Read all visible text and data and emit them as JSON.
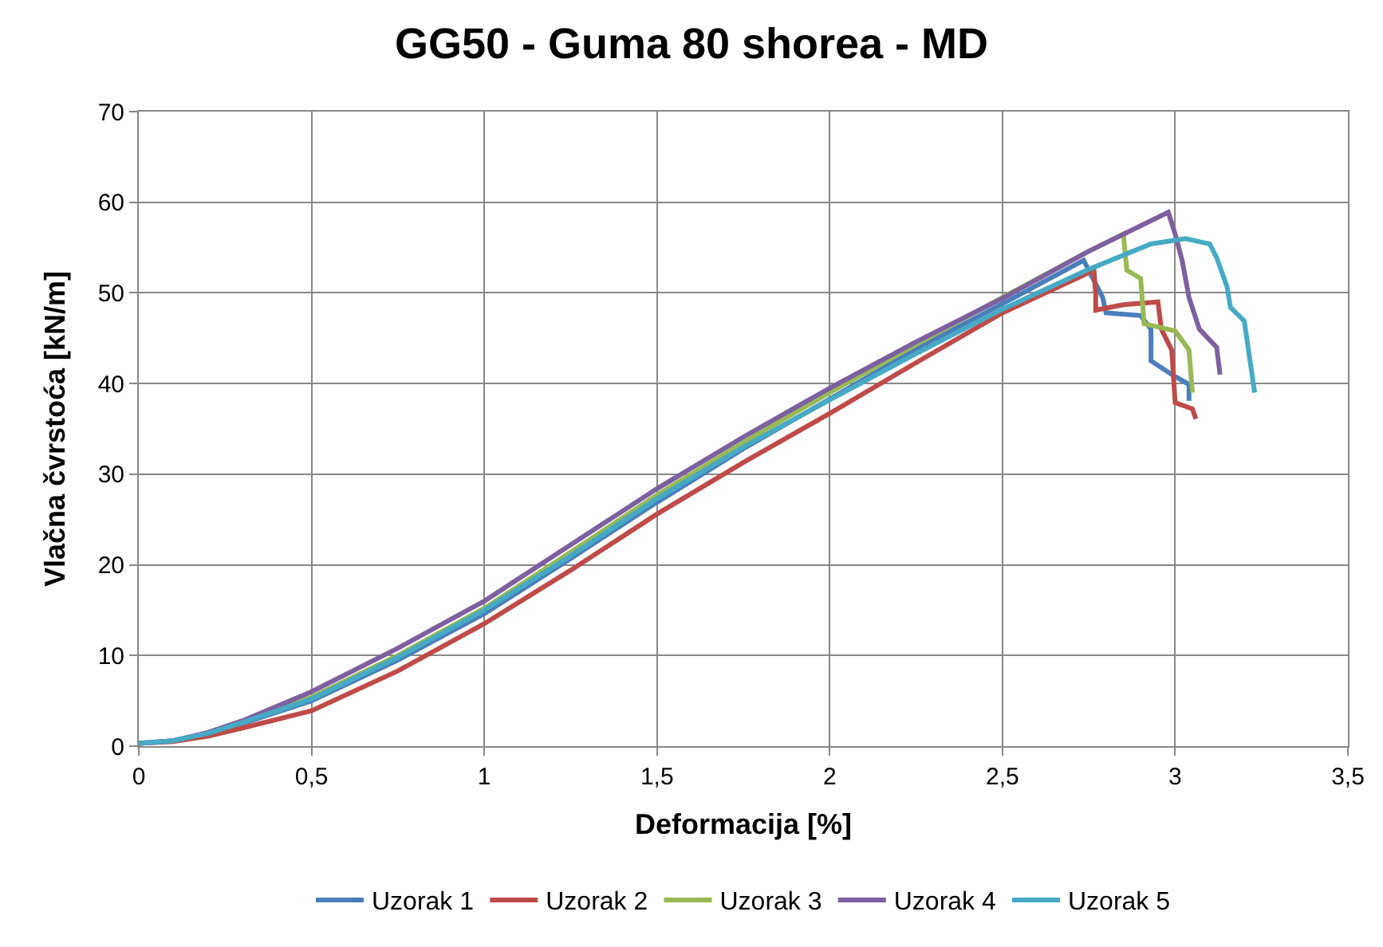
{
  "chart_data": {
    "type": "line",
    "title": "GG50 - Guma 80 shorea - MD",
    "xlabel": "Deformacija [%]",
    "ylabel": "Vlačna čvrstoća [kN/m]",
    "xlim": [
      0,
      3.5
    ],
    "ylim": [
      0,
      70
    ],
    "xticks": [
      0,
      {
        "value": 0.5,
        "label": "0,5"
      },
      1,
      {
        "value": 1.5,
        "label": "1,5"
      },
      2,
      {
        "value": 2.5,
        "label": "2,5"
      },
      3,
      {
        "value": 3.5,
        "label": "3,5"
      }
    ],
    "yticks": [
      0,
      10,
      20,
      30,
      40,
      50,
      60,
      70
    ],
    "grid": true,
    "legend": "bottom",
    "marker": "none",
    "line_style": "solid",
    "series": [
      {
        "name": "Uzorak 1",
        "color": "#4a7ebb",
        "x": [
          0,
          0.1,
          0.2,
          0.3,
          0.5,
          0.75,
          1,
          1.25,
          1.5,
          1.75,
          2,
          2.25,
          2.5,
          2.735,
          2.79,
          2.8,
          2.9,
          2.93,
          2.93,
          2.99,
          3.04,
          3.04
        ],
        "values": [
          0.3,
          0.6,
          1.3,
          2.5,
          5.0,
          9.5,
          14.6,
          20.7,
          26.9,
          32.8,
          38.3,
          43.8,
          48.8,
          53.6,
          49.5,
          47.8,
          47.5,
          46.0,
          42.5,
          41.0,
          39.9,
          38.1
        ]
      },
      {
        "name": "Uzorak 2",
        "color": "#be4b48",
        "x": [
          0,
          0.1,
          0.2,
          0.3,
          0.5,
          0.75,
          1,
          1.25,
          1.5,
          1.75,
          2,
          2.25,
          2.5,
          2.765,
          2.77,
          2.77,
          2.85,
          2.95,
          2.96,
          2.99,
          3.0,
          3.05,
          3.06
        ],
        "values": [
          0.3,
          0.5,
          1.1,
          2.0,
          3.9,
          8.3,
          13.5,
          19.4,
          25.6,
          31.3,
          36.7,
          42.3,
          47.8,
          52.5,
          49.8,
          48.1,
          48.7,
          49.0,
          46.0,
          43.7,
          37.9,
          37.2,
          36.1
        ]
      },
      {
        "name": "Uzorak 3",
        "color": "#98b954",
        "x": [
          0.3,
          0.5,
          0.75,
          1,
          1.25,
          1.5,
          1.75,
          2,
          2.25,
          2.5,
          2.75,
          2.85,
          2.86,
          2.9,
          2.91,
          3.0,
          3.04,
          3.05
        ],
        "values": [
          2.6,
          5.4,
          10.0,
          15.2,
          21.4,
          27.7,
          33.5,
          39.0,
          44.3,
          49.5,
          54.6,
          56.5,
          52.5,
          51.6,
          46.6,
          45.8,
          43.7,
          39.0
        ]
      },
      {
        "name": "Uzorak 4",
        "color": "#7d60a0",
        "x": [
          0,
          0.1,
          0.2,
          0.3,
          0.5,
          0.75,
          1,
          1.25,
          1.5,
          1.75,
          2,
          2.25,
          2.5,
          2.75,
          2.98,
          3.0,
          3.02,
          3.04,
          3.07,
          3.12,
          3.13
        ],
        "values": [
          0.3,
          0.6,
          1.5,
          2.8,
          6.0,
          10.8,
          16.0,
          22.2,
          28.4,
          34.1,
          39.5,
          44.6,
          49.4,
          54.6,
          58.9,
          56.5,
          53.6,
          49.5,
          46.0,
          44.0,
          41.0
        ]
      },
      {
        "name": "Uzorak 5",
        "color": "#46aac5",
        "x": [
          0,
          0.1,
          0.2,
          0.3,
          0.5,
          0.75,
          1,
          1.25,
          1.5,
          1.75,
          2,
          2.25,
          2.5,
          2.75,
          2.93,
          3.03,
          3.1,
          3.12,
          3.15,
          3.16,
          3.2,
          3.23
        ],
        "values": [
          0.3,
          0.6,
          1.4,
          2.6,
          5.2,
          9.8,
          15.0,
          21.0,
          27.3,
          33.0,
          38.2,
          43.3,
          48.2,
          52.6,
          55.4,
          56.0,
          55.4,
          53.9,
          50.7,
          48.4,
          46.9,
          39.0
        ]
      }
    ]
  }
}
